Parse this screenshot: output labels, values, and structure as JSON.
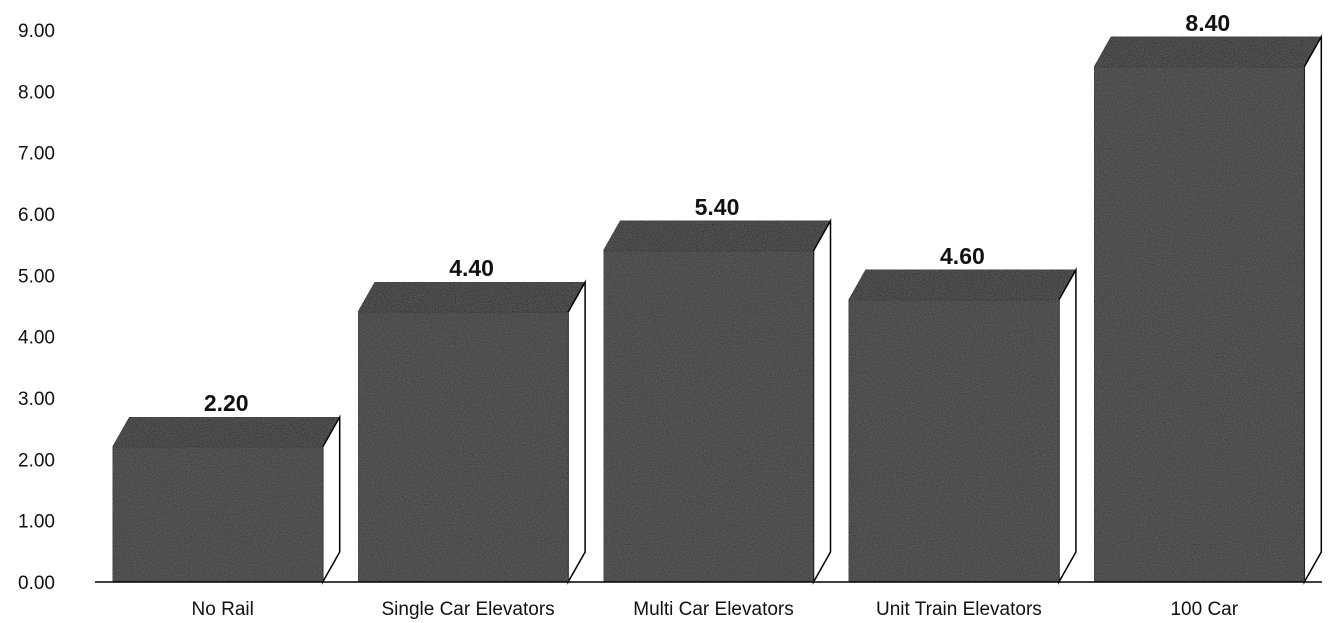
{
  "chart_data": {
    "type": "bar",
    "title": "",
    "xlabel": "",
    "ylabel": "",
    "categories": [
      "No Rail",
      "Single Car Elevators",
      "Multi Car Elevators",
      "Unit Train Elevators",
      "100 Car"
    ],
    "values": [
      2.2,
      4.4,
      5.4,
      4.6,
      8.4
    ],
    "value_labels": [
      "2.20",
      "4.40",
      "5.40",
      "4.60",
      "8.40"
    ],
    "ylim": [
      0,
      9
    ],
    "yticks": [
      "0.00",
      "1.00",
      "2.00",
      "3.00",
      "4.00",
      "5.00",
      "6.00",
      "7.00",
      "8.00",
      "9.00"
    ],
    "grid": false,
    "legend": "none",
    "bar_style": "3d",
    "colors": {
      "bar_front": "#2b2b2b",
      "bar_top": "#1e1e1e",
      "bar_side": "#ffffff",
      "axis": "#000000"
    }
  }
}
